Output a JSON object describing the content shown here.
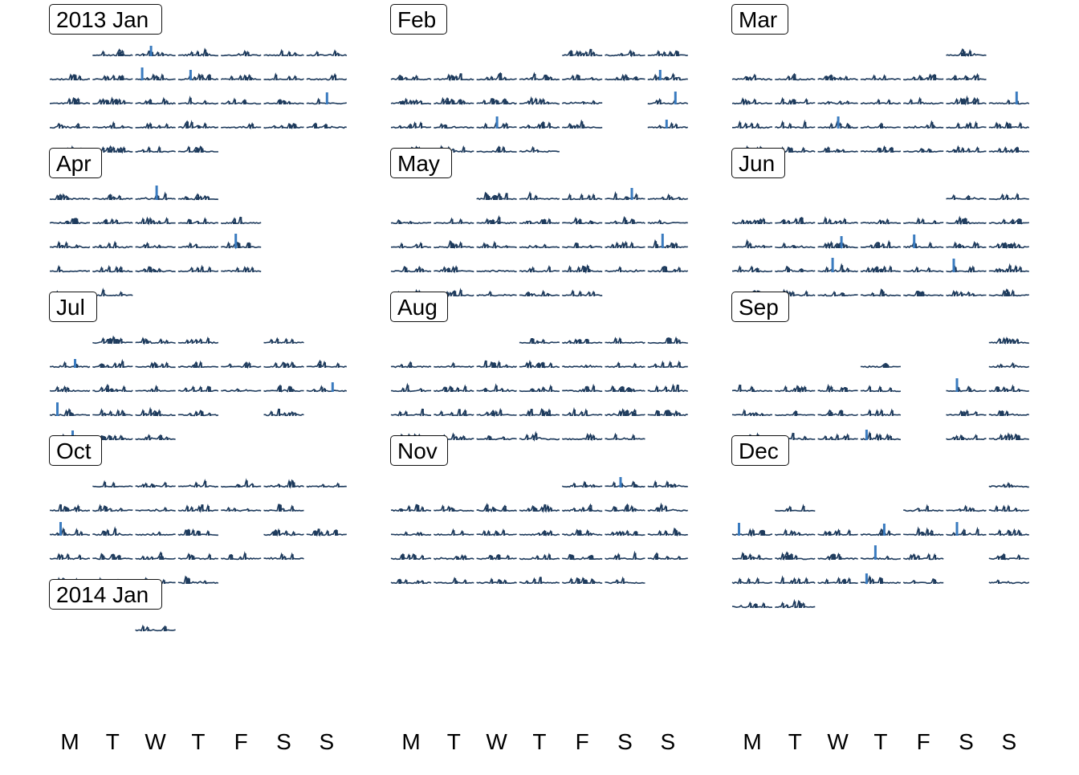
{
  "chart_data": {
    "type": "calendar",
    "months": [
      {
        "label": "2013 Jan",
        "start_weekday": 1,
        "days": 31
      },
      {
        "label": "Feb",
        "start_weekday": 4,
        "days": 28
      },
      {
        "label": "Mar",
        "start_weekday": 4,
        "days": 31
      },
      {
        "label": "Apr",
        "start_weekday": 0,
        "days": 30
      },
      {
        "label": "May",
        "start_weekday": 2,
        "days": 31
      },
      {
        "label": "Jun",
        "start_weekday": 5,
        "days": 30
      },
      {
        "label": "Jul",
        "start_weekday": 0,
        "days": 31
      },
      {
        "label": "Aug",
        "start_weekday": 3,
        "days": 31
      },
      {
        "label": "Sep",
        "start_weekday": 6,
        "days": 30
      },
      {
        "label": "Oct",
        "start_weekday": 1,
        "days": 31
      },
      {
        "label": "Nov",
        "start_weekday": 4,
        "days": 30
      },
      {
        "label": "Dec",
        "start_weekday": 6,
        "days": 31
      },
      {
        "label": "2014 Jan",
        "start_weekday": 2,
        "days": 1
      }
    ],
    "weekday_labels": [
      "M",
      "T",
      "W",
      "T",
      "F",
      "S",
      "S"
    ],
    "highlight_days": {
      "2013 Jan": [
        2,
        9,
        10,
        20
      ],
      "Feb": [
        10,
        17,
        20,
        24
      ],
      "Mar": [
        17,
        20
      ],
      "Apr": [
        3,
        19
      ],
      "May": [
        4,
        19
      ],
      "Jun": [
        12,
        14,
        19,
        22
      ],
      "Jul": [
        8,
        21,
        22,
        29
      ],
      "Aug": [],
      "Sep": [
        14,
        26
      ],
      "Oct": [
        14
      ],
      "Nov": [
        2
      ],
      "Dec": [
        9,
        12,
        14,
        19,
        26
      ],
      "2014 Jan": []
    },
    "missing_days": {
      "2013 Jan": [],
      "Feb": [
        16,
        23
      ],
      "Mar": [
        1,
        3,
        10
      ],
      "Apr": [
        5,
        6,
        7,
        13,
        14,
        20,
        21,
        27,
        28
      ],
      "May": [],
      "Jun": [],
      "Jul": [
        1,
        5,
        7,
        26,
        28
      ],
      "Aug": [],
      "Sep": [
        2,
        3,
        4,
        6,
        7,
        13,
        20,
        27
      ],
      "Oct": [
        13,
        18,
        27
      ],
      "Nov": [],
      "Dec": [
        2,
        4,
        5,
        21,
        28
      ],
      "2014 Jan": []
    },
    "colors": {
      "bar": "#1d3a5c",
      "highlight": "#3a7bbf",
      "line": "#1d3a5c"
    }
  }
}
